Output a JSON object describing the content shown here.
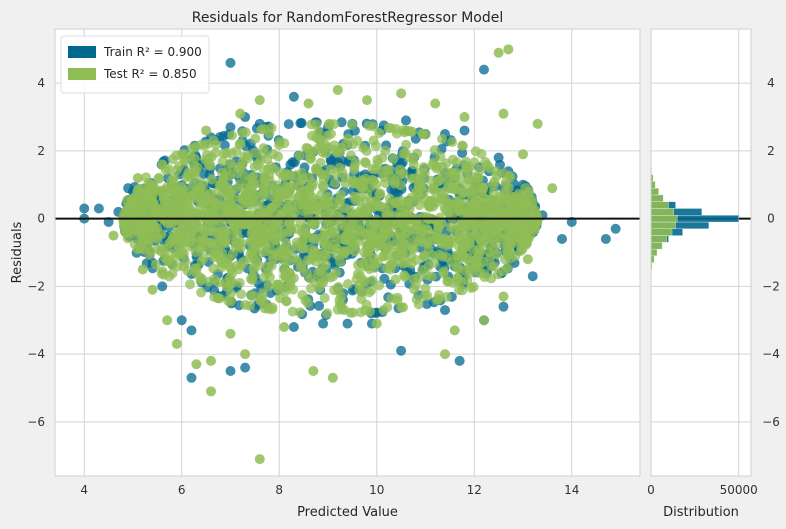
{
  "chart_data": {
    "type": "scatter",
    "title": "Residuals for RandomForestRegressor Model",
    "xlabel": "Predicted Value",
    "ylabel": "Residuals",
    "xlim": [
      3.4,
      15.4
    ],
    "ylim": [
      -7.6,
      5.6
    ],
    "xticks": [
      4,
      6,
      8,
      10,
      12,
      14
    ],
    "yticks": [
      -6,
      -4,
      -2,
      0,
      2,
      4
    ],
    "grid": true,
    "zero_line": 0,
    "legend_position": "top-left",
    "series": [
      {
        "name": "Train",
        "r2_label": "Train R² = 0.900",
        "color": "#00688f",
        "points": [
          [
            4.0,
            0.3
          ],
          [
            4.0,
            0.0
          ],
          [
            4.3,
            0.3
          ],
          [
            4.5,
            -0.1
          ],
          [
            4.7,
            0.2
          ],
          [
            4.9,
            0.9
          ],
          [
            5.0,
            0.8
          ],
          [
            5.2,
            0.6
          ],
          [
            5.5,
            0.8
          ],
          [
            5.8,
            1.0
          ],
          [
            6.0,
            1.4
          ],
          [
            6.3,
            1.8
          ],
          [
            6.6,
            2.4
          ],
          [
            7.0,
            2.7
          ],
          [
            7.3,
            3.0
          ],
          [
            7.6,
            2.8
          ],
          [
            8.3,
            3.6
          ],
          [
            9.0,
            2.7
          ],
          [
            9.5,
            2.8
          ],
          [
            10.1,
            2.6
          ],
          [
            10.6,
            2.9
          ],
          [
            11.0,
            2.5
          ],
          [
            11.4,
            2.5
          ],
          [
            11.8,
            2.6
          ],
          [
            12.2,
            4.4
          ],
          [
            12.5,
            1.8
          ],
          [
            12.7,
            1.4
          ],
          [
            13.0,
            1.0
          ],
          [
            13.2,
            0.3
          ],
          [
            13.4,
            0.1
          ],
          [
            13.8,
            -0.6
          ],
          [
            14.0,
            -0.1
          ],
          [
            14.7,
            -0.6
          ],
          [
            14.9,
            -0.3
          ],
          [
            5.4,
            -1.3
          ],
          [
            5.6,
            -2.0
          ],
          [
            6.0,
            -3.0
          ],
          [
            6.2,
            -3.3
          ],
          [
            6.2,
            -4.7
          ],
          [
            7.0,
            -4.5
          ],
          [
            7.3,
            -4.4
          ],
          [
            8.3,
            -3.2
          ],
          [
            8.9,
            -3.1
          ],
          [
            9.4,
            -3.1
          ],
          [
            9.9,
            -3.1
          ],
          [
            10.5,
            -3.9
          ],
          [
            11.4,
            -2.7
          ],
          [
            11.7,
            -4.2
          ],
          [
            12.2,
            -3.0
          ],
          [
            12.6,
            -2.6
          ],
          [
            13.2,
            -1.7
          ],
          [
            7.0,
            4.6
          ]
        ]
      },
      {
        "name": "Test",
        "r2_label": "Test R² = 0.850",
        "color": "#8fbc55",
        "points": [
          [
            4.6,
            -0.5
          ],
          [
            5.0,
            0.6
          ],
          [
            5.2,
            -1.5
          ],
          [
            5.4,
            -2.1
          ],
          [
            5.7,
            -3.0
          ],
          [
            5.9,
            -3.7
          ],
          [
            5.6,
            1.6
          ],
          [
            6.0,
            1.9
          ],
          [
            6.5,
            2.6
          ],
          [
            7.2,
            3.1
          ],
          [
            7.6,
            3.5
          ],
          [
            8.6,
            3.4
          ],
          [
            9.2,
            3.8
          ],
          [
            9.8,
            3.5
          ],
          [
            10.5,
            3.7
          ],
          [
            11.2,
            3.4
          ],
          [
            11.8,
            3.0
          ],
          [
            12.6,
            3.1
          ],
          [
            12.5,
            4.9
          ],
          [
            12.7,
            5.0
          ],
          [
            13.3,
            2.8
          ],
          [
            13.0,
            1.9
          ],
          [
            13.6,
            0.9
          ],
          [
            13.1,
            -1.2
          ],
          [
            12.6,
            -2.3
          ],
          [
            12.2,
            -3.0
          ],
          [
            11.6,
            -3.3
          ],
          [
            11.4,
            -4.0
          ],
          [
            10.0,
            -3.1
          ],
          [
            9.1,
            -4.7
          ],
          [
            8.7,
            -4.5
          ],
          [
            8.1,
            -3.2
          ],
          [
            7.6,
            -7.1
          ],
          [
            6.6,
            -4.2
          ],
          [
            6.6,
            -5.1
          ],
          [
            7.0,
            -3.4
          ],
          [
            7.3,
            -4.0
          ],
          [
            6.3,
            -4.3
          ],
          [
            5.2,
            -0.9
          ],
          [
            5.1,
            1.2
          ]
        ]
      }
    ],
    "dense_region": {
      "x_range": [
        4.8,
        13.3
      ],
      "y_range": [
        -2.9,
        2.8
      ],
      "description": "bulk of train and test points"
    },
    "distribution": {
      "xlabel": "Distribution",
      "xlim": [
        0,
        57000
      ],
      "xticks": [
        0,
        50000
      ],
      "bin_edges": [
        -1.5,
        -1.3,
        -1.1,
        -0.9,
        -0.7,
        -0.5,
        -0.3,
        -0.1,
        0.1,
        0.3,
        0.5,
        0.7,
        0.9,
        1.1,
        1.3,
        1.5
      ],
      "train_counts": [
        500,
        1500,
        3000,
        6000,
        10000,
        18000,
        33000,
        50000,
        29000,
        14000,
        7000,
        4000,
        2000,
        1000,
        400
      ],
      "test_counts": [
        600,
        1800,
        3500,
        6500,
        9000,
        12000,
        14000,
        15000,
        13000,
        10000,
        7000,
        4500,
        2500,
        1200,
        500
      ]
    }
  }
}
